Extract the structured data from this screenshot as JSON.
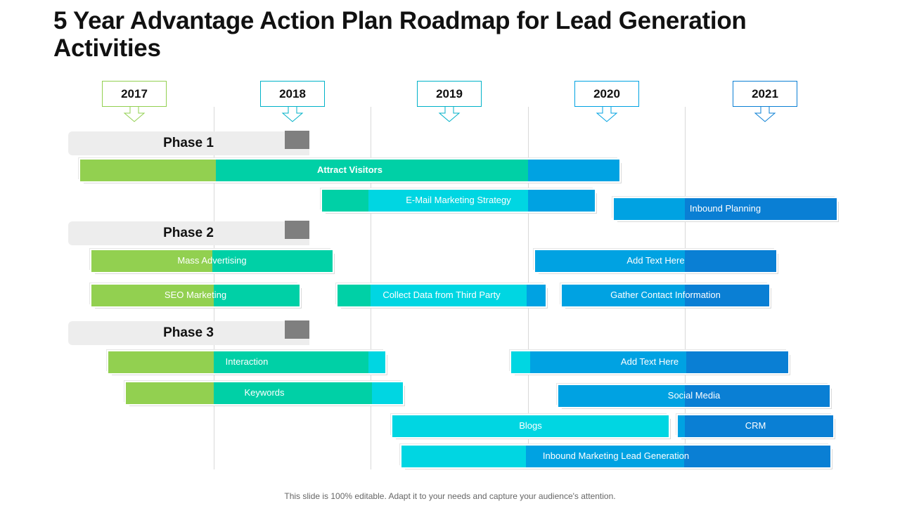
{
  "title": "5 Year Advantage Action Plan Roadmap for Lead Generation Activities",
  "footer": "This slide is 100% editable. Adapt it to your needs and capture your audience's attention.",
  "colors": {
    "green": "#92d050",
    "teal": "#00d0a6",
    "cyan": "#00d6e2",
    "blue": "#00a2e2",
    "dark_blue": "#0a7fd4",
    "phase_band": "#ededed",
    "phase_tab": "#7f7f7f",
    "gridline": "#d9d9d9"
  },
  "years": [
    {
      "label": "2017",
      "color": "#92d050"
    },
    {
      "label": "2018",
      "color": "#00b2c8"
    },
    {
      "label": "2019",
      "color": "#00b2c8"
    },
    {
      "label": "2020",
      "color": "#00a2e2"
    },
    {
      "label": "2021",
      "color": "#0a7fd4"
    }
  ],
  "phases": [
    {
      "label": "Phase 1"
    },
    {
      "label": "Phase 2"
    },
    {
      "label": "Phase 3"
    }
  ],
  "tasks": [
    {
      "label": "Attract Visitors",
      "bold": true
    },
    {
      "label": "E-Mail Marketing Strategy"
    },
    {
      "label": "Inbound Planning"
    },
    {
      "label": "Mass Advertising"
    },
    {
      "label": "Add Text Here"
    },
    {
      "label": "SEO Marketing"
    },
    {
      "label": "Collect Data from Third Party"
    },
    {
      "label": "Gather Contact Information"
    },
    {
      "label": "Interaction"
    },
    {
      "label": "Add Text Here"
    },
    {
      "label": "Keywords"
    },
    {
      "label": "Social Media"
    },
    {
      "label": "Blogs"
    },
    {
      "label": "CRM"
    },
    {
      "label": "Inbound Marketing Lead Generation"
    }
  ]
}
